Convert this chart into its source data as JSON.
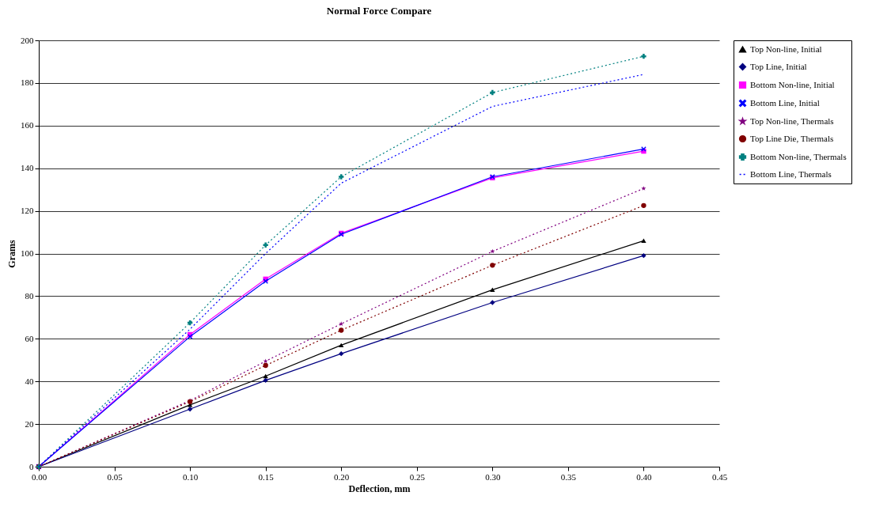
{
  "chart_data": {
    "type": "line",
    "title": "Normal Force Compare",
    "xlabel": "Deflection, mm",
    "ylabel": "Grams",
    "x": [
      0,
      0.1,
      0.15,
      0.2,
      0.3,
      0.4
    ],
    "xlim": [
      0,
      0.45
    ],
    "xticks": [
      {
        "value": 0,
        "label": "0.00"
      },
      {
        "value": 0.05,
        "label": "0.05"
      },
      {
        "value": 0.1,
        "label": "0.10"
      },
      {
        "value": 0.15,
        "label": "0.15"
      },
      {
        "value": 0.2,
        "label": "0.20"
      },
      {
        "value": 0.25,
        "label": "0.25"
      },
      {
        "value": 0.3,
        "label": "0.30"
      },
      {
        "value": 0.35,
        "label": "0.35"
      },
      {
        "value": 0.4,
        "label": "0.40"
      },
      {
        "value": 0.45,
        "label": "0.45"
      }
    ],
    "ylim": [
      0,
      200
    ],
    "yticks": [
      0,
      20,
      40,
      60,
      80,
      100,
      120,
      140,
      160,
      180,
      200
    ],
    "grid": "y",
    "legend": "right",
    "series": [
      {
        "name": "Top Non-line, Initial",
        "color": "#000000",
        "marker": "triangle",
        "line_style": "solid",
        "values": [
          0,
          29,
          42.5,
          57,
          83,
          106
        ]
      },
      {
        "name": "Top Line, Initial",
        "color": "#000080",
        "marker": "diamond",
        "line_style": "solid",
        "values": [
          0,
          27,
          40.5,
          53,
          77,
          99
        ]
      },
      {
        "name": "Bottom Non-line, Initial",
        "color": "#ff00ff",
        "marker": "square",
        "line_style": "solid",
        "values": [
          0,
          62,
          88,
          109.5,
          135.5,
          148
        ]
      },
      {
        "name": "Bottom  Line, Initial",
        "color": "#0000ff",
        "marker": "cross",
        "line_style": "solid",
        "values": [
          0,
          61,
          87,
          109,
          136,
          149
        ]
      },
      {
        "name": "Top Non-line, Thermals",
        "color": "#800080",
        "marker": "star",
        "line_style": "dotted",
        "values": [
          0,
          31,
          49.5,
          67,
          101,
          130.5
        ]
      },
      {
        "name": "Top Line Die, Thermals",
        "color": "#800000",
        "marker": "circle",
        "line_style": "dotted",
        "values": [
          0,
          30.5,
          47.5,
          64,
          94.5,
          122.5
        ]
      },
      {
        "name": "Bottom Non-line, Thermals",
        "color": "#008080",
        "marker": "plus",
        "line_style": "dotted",
        "values": [
          0,
          67.5,
          104,
          136,
          175.5,
          192.5
        ]
      },
      {
        "name": "Bottom Line, Thermals",
        "color": "#0000ff",
        "marker": "none",
        "line_style": "dotted",
        "values": [
          0,
          64.5,
          100,
          133,
          169,
          184
        ]
      }
    ]
  }
}
